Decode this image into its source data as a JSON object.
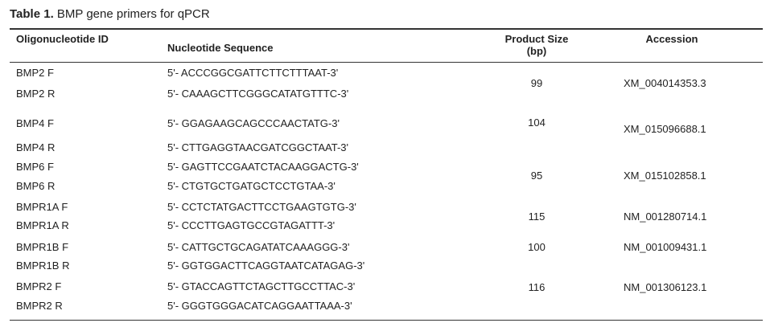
{
  "table": {
    "label": "Table 1.",
    "caption": "BMP gene primers for qPCR",
    "header": [
      "Oligonucleotide ID",
      "Nucleotide Sequence",
      "Product Size (bp)",
      "Accession"
    ],
    "groups": [
      {
        "primers": [
          {
            "id": "BMP2 F",
            "sequence": "5'- ACCCGGCGATTCTTCTTTAAT-3'"
          },
          {
            "id": "BMP2 R",
            "sequence": "5'- CAAAGCTTCGGGCATATGTTTC-3'"
          }
        ],
        "size": 99,
        "accession": "XM_004014353.3"
      },
      {
        "primers": [
          {
            "id": "BMP4 F",
            "sequence": "5'- GGAGAAGCAGCCCAACTATG-3'"
          },
          {
            "id": "BMP4 R",
            "sequence": "5'- CTTGAGGTAACGATCGGCTAAT-3'"
          }
        ],
        "size": 104,
        "accession": "XM_015096688.1"
      },
      {
        "primers": [
          {
            "id": "BMP6 F",
            "sequence": "5'- GAGTTCCGAATCTACAAGGACTG-3'"
          },
          {
            "id": "BMP6 R",
            "sequence": "5'- CTGTGCTGATGCTCCTGTAA-3'"
          }
        ],
        "size": 95,
        "accession": "XM_015102858.1"
      },
      {
        "primers": [
          {
            "id": "BMPR1A F",
            "sequence": "5'- CCTCTATGACTTCCTGAAGTGTG-3'"
          },
          {
            "id": "BMPR1A R",
            "sequence": "5'- CCCTTGAGTGCCGTAGATTT-3'"
          }
        ],
        "size": 115,
        "accession": "NM_001280714.1"
      },
      {
        "primers": [
          {
            "id": "BMPR1B F",
            "sequence": "5'- CATTGCTGCAGATATCAAAGGG-3'"
          },
          {
            "id": "BMPR1B R",
            "sequence": "5'- GGTGGACTTCAGGTAATCATAGAG-3'"
          }
        ],
        "size": 100,
        "accession": "NM_001009431.1"
      },
      {
        "primers": [
          {
            "id": "BMPR2 F",
            "sequence": "5'- GTACCAGTTCTAGCTTGCCTTAC-3'"
          },
          {
            "id": "BMPR2 R",
            "sequence": "5'- GGGTGGGACATCAGGAATTAAA-3'"
          }
        ],
        "size": 116,
        "accession": "NM_001306123.1"
      }
    ]
  }
}
